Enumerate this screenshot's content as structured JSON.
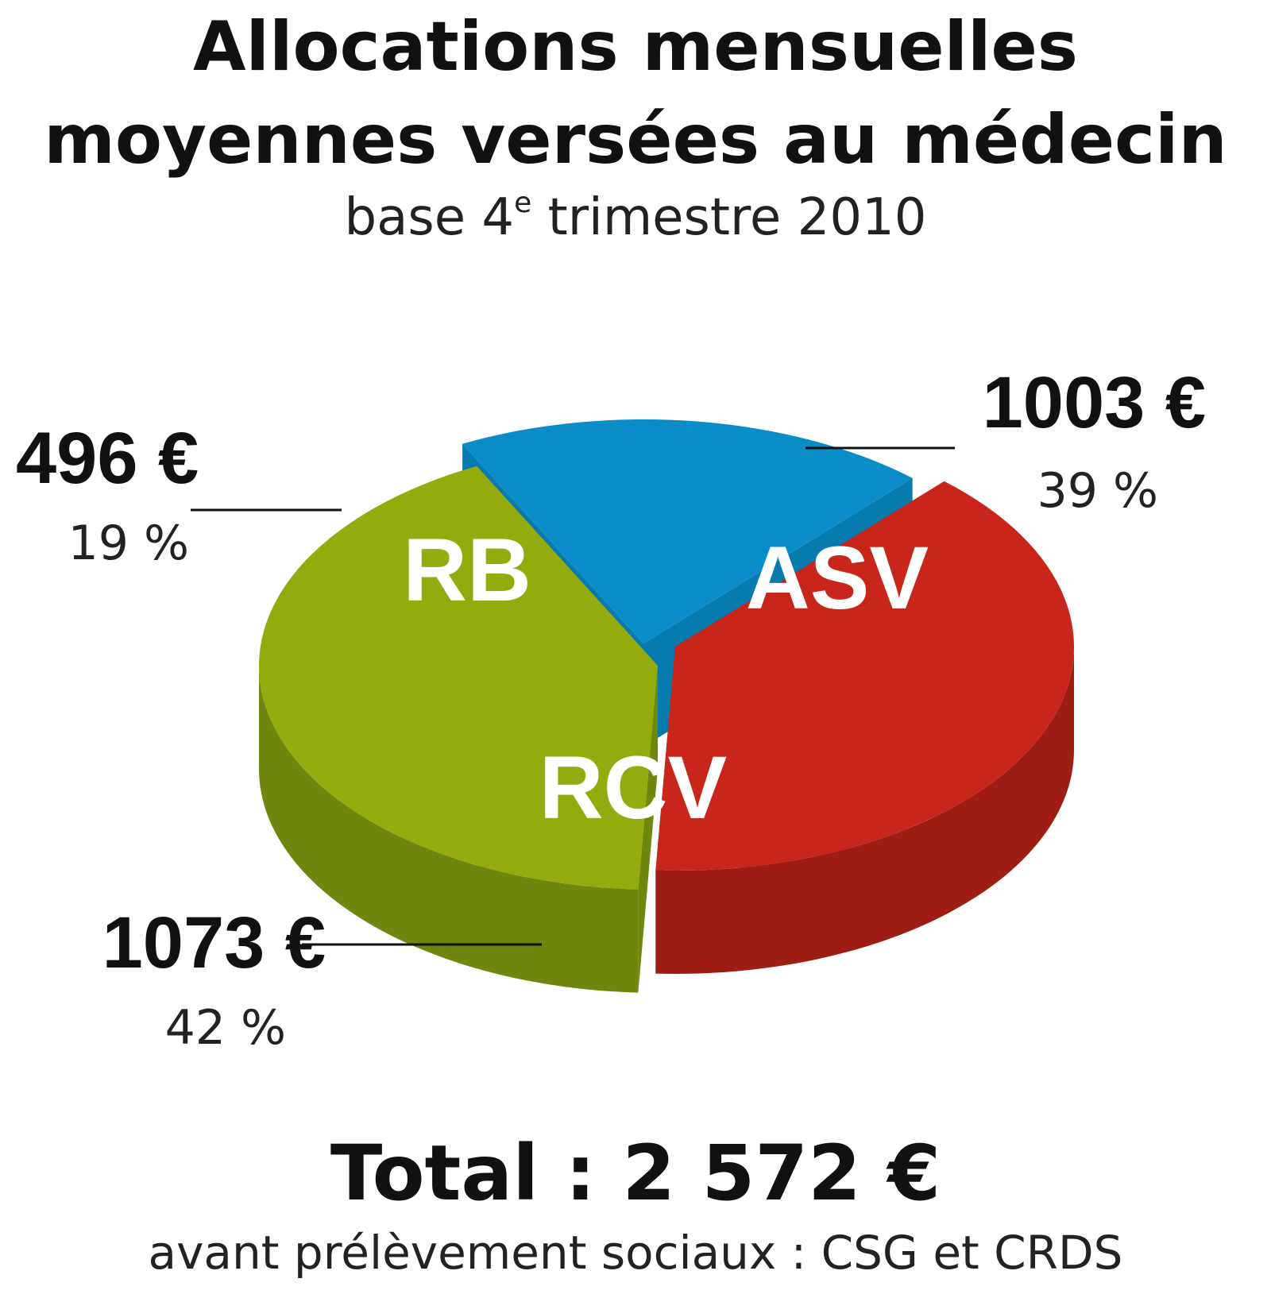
{
  "chart_data": {
    "type": "pie",
    "title": "Allocations mensuelles moyennes versées au médecin",
    "title_lines": [
      "Allocations mensuelles",
      "moyennes versées au médecin"
    ],
    "subtitle": {
      "prefix": "base 4",
      "superscript": "e",
      "suffix": " trimestre 2010"
    },
    "slices": [
      {
        "name": "RB",
        "value": 496,
        "value_label": "496 €",
        "percent_label": "19 %",
        "color": "#0a8cc8",
        "side_color": "#077aae"
      },
      {
        "name": "ASV",
        "value": 1003,
        "value_label": "1003 €",
        "percent_label": "39 %",
        "color": "#c8261a",
        "side_color": "#9e1e15"
      },
      {
        "name": "RCV",
        "value": 1073,
        "value_label": "1073 €",
        "percent_label": "42 %",
        "color": "#93ab0c",
        "side_color": "#6f860f"
      }
    ],
    "total_label": "Total : 2 572 €",
    "footnote": "avant prélèvement sociaux : CSG et CRDS"
  }
}
